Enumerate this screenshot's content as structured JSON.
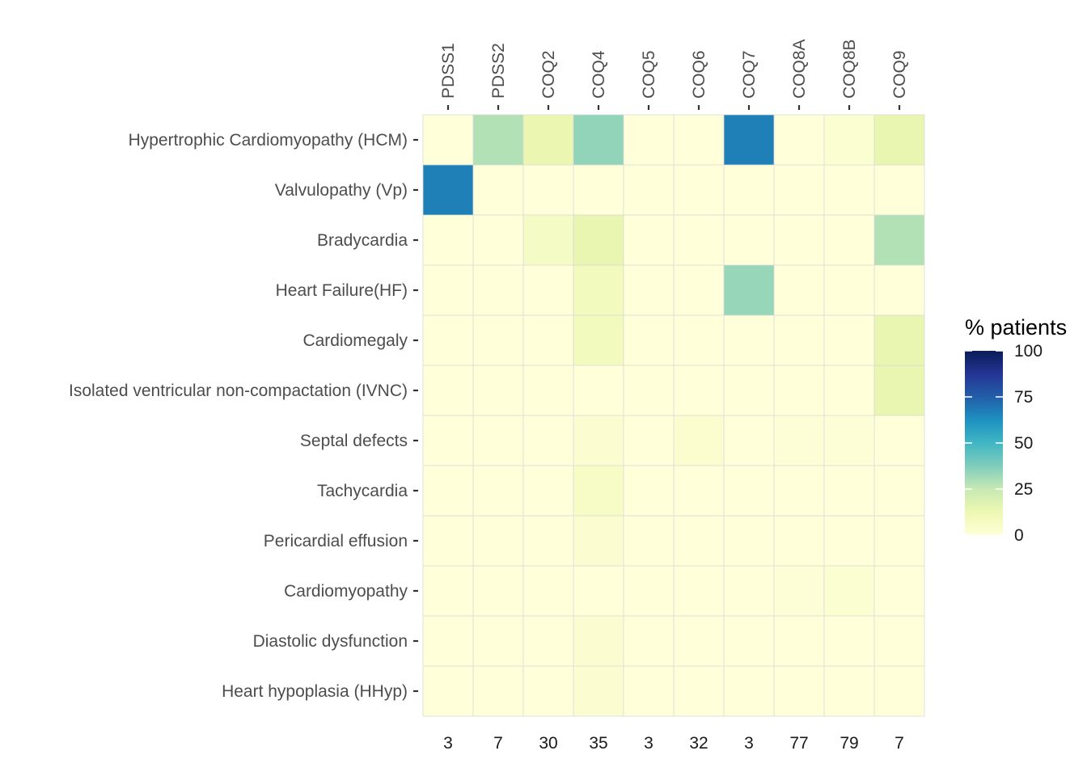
{
  "chart_data": {
    "type": "heatmap",
    "genes": [
      "PDSS1",
      "PDSS2",
      "COQ2",
      "COQ4",
      "COQ5",
      "COQ6",
      "COQ7",
      "COQ8A",
      "COQ8B",
      "COQ9"
    ],
    "patient_counts": [
      "3",
      "7",
      "30",
      "35",
      "3",
      "32",
      "3",
      "77",
      "79",
      "7"
    ],
    "phenotypes": [
      "Hypertrophic Cardiomyopathy (HCM)",
      "Valvulopathy (Vp)",
      "Bradycardia",
      "Heart Failure(HF)",
      "Cardiomegaly",
      "Isolated ventricular non-compactation (IVNC)",
      "Septal defects",
      "Tachycardia",
      "Pericardial effusion",
      "Cardiomyopathy",
      "Diastolic dysfunction",
      "Heart hypoplasia (HHyp)"
    ],
    "values": [
      [
        0,
        28.6,
        13.3,
        34.3,
        0,
        0,
        66.7,
        0,
        2.5,
        14.3
      ],
      [
        66.7,
        0,
        0,
        0,
        0,
        0,
        0,
        0,
        0,
        0
      ],
      [
        0,
        0,
        6.7,
        14.3,
        0,
        0,
        0,
        0,
        0,
        28.6
      ],
      [
        0,
        0,
        0,
        8.6,
        0,
        0,
        33.3,
        0,
        0,
        0
      ],
      [
        0,
        0,
        0,
        8.6,
        0,
        0,
        0,
        0,
        0,
        14.3
      ],
      [
        0,
        0,
        0,
        0,
        0,
        0,
        0,
        0,
        0,
        14.3
      ],
      [
        0,
        0,
        0,
        2.9,
        0,
        3.1,
        0,
        1.3,
        1.3,
        0
      ],
      [
        0,
        0,
        0,
        5.7,
        0,
        0,
        0,
        0,
        0,
        0
      ],
      [
        0,
        0,
        0,
        2.9,
        0,
        0,
        0,
        0,
        0,
        0
      ],
      [
        0,
        0,
        0,
        0,
        0,
        0,
        0,
        1.3,
        2.5,
        0
      ],
      [
        0,
        0,
        0,
        2.9,
        0,
        0,
        0,
        0,
        0,
        0
      ],
      [
        0,
        0,
        0,
        2.9,
        0,
        0,
        0,
        0,
        0,
        0
      ]
    ],
    "legend": {
      "title": "% patients",
      "ticks": [
        "0",
        "25",
        "50",
        "75",
        "100"
      ],
      "tick_values": [
        0,
        25,
        50,
        75,
        100
      ],
      "range": [
        0,
        100
      ],
      "palette": "YlGnBu",
      "colors": [
        "#ffffd9",
        "#edf8b1",
        "#c7e9b4",
        "#7fcdbb",
        "#41b6c4",
        "#1d91c0",
        "#225ea8",
        "#253494",
        "#081d58"
      ],
      "position": "right"
    },
    "grid_color": "#d9d9d9",
    "grid": true
  }
}
